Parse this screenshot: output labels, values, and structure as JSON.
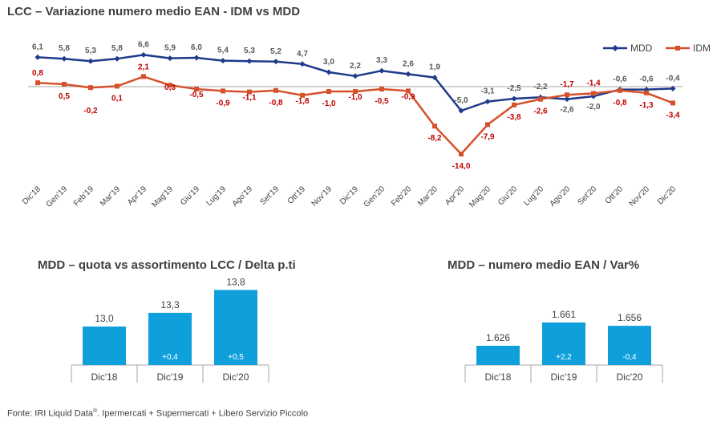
{
  "titles": {
    "line": "LCC – Variazione numero medio EAN - IDM vs MDD",
    "quota": "MDD – quota vs assortimento LCC / Delta p.ti",
    "ean": "MDD – numero medio EAN / Var%"
  },
  "footer": {
    "prefix": "Fonte: IRI Liquid Data",
    "sup": "®",
    "suffix": ". Ipermercati + Supermercati + Libero Servizio Piccolo"
  },
  "colors": {
    "mdd": "#1f3a8a",
    "idm": "#d5512c",
    "bar": "#0fa0dc",
    "axis": "#a6a6a6"
  },
  "chart_data": [
    {
      "type": "line",
      "title": "LCC – Variazione numero medio EAN - IDM vs MDD",
      "categories": [
        "Dic'18",
        "Gen'19",
        "Feb'19",
        "Mar'19",
        "Apr'19",
        "Mag'19",
        "Giu'19",
        "Lug'19",
        "Ago'19",
        "Set'19",
        "Ott'19",
        "Nov'19",
        "Dic'19",
        "Gen'20",
        "Feb'20",
        "Mar'20",
        "Apr'20",
        "Mag'20",
        "Giu'20",
        "Lug'20",
        "Ago'20",
        "Set'20",
        "Ott'20",
        "Nov'20",
        "Dic'20"
      ],
      "series": [
        {
          "name": "MDD",
          "labels": [
            "6,1",
            "5,8",
            "5,3",
            "5,8",
            "6,6",
            "5,9",
            "6,0",
            "5,4",
            "5,3",
            "5,2",
            "4,7",
            "3,0",
            "2,2",
            "3,3",
            "2,6",
            "1,9",
            "-5,0",
            "-3,1",
            "-2,5",
            "-2,2",
            "-2,6",
            "-2,0",
            "-0,6",
            "-0,6",
            "-0,4"
          ],
          "values": [
            6.1,
            5.8,
            5.3,
            5.8,
            6.6,
            5.9,
            6.0,
            5.4,
            5.3,
            5.2,
            4.7,
            3.0,
            2.2,
            3.3,
            2.6,
            1.9,
            -5.0,
            -3.1,
            -2.5,
            -2.2,
            -2.6,
            -2.0,
            -0.6,
            -0.6,
            -0.4
          ]
        },
        {
          "name": "IDM",
          "labels": [
            "0,8",
            "0,5",
            "-0,2",
            "0,1",
            "2,1",
            "0,3",
            "-0,5",
            "-0,9",
            "-1,1",
            "-0,8",
            "-1,8",
            "-1,0",
            "-1,0",
            "-0,5",
            "-0,9",
            "-8,2",
            "-14,0",
            "-7,9",
            "-3,8",
            "-2,6",
            "-1,7",
            "-1,4",
            "-0,8",
            "-1,3",
            "-3,4"
          ],
          "values": [
            0.8,
            0.5,
            -0.2,
            0.1,
            2.1,
            0.3,
            -0.5,
            -0.9,
            -1.1,
            -0.8,
            -1.8,
            -1.0,
            -1.0,
            -0.5,
            -0.9,
            -8.2,
            -14.0,
            -7.9,
            -3.8,
            -2.6,
            -1.7,
            -1.4,
            -0.8,
            -1.3,
            -3.4
          ]
        }
      ],
      "legend": "top-right"
    },
    {
      "type": "bar",
      "title": "MDD – quota vs assortimento LCC / Delta p.ti",
      "categories": [
        "Dic'18",
        "Dic'19",
        "Dic'20"
      ],
      "values": [
        13.0,
        13.3,
        13.8
      ],
      "labels": [
        "13,0",
        "13,3",
        "13,8"
      ],
      "deltas": [
        "",
        "+0,4",
        "+0,5"
      ]
    },
    {
      "type": "bar",
      "title": "MDD – numero medio EAN / Var%",
      "categories": [
        "Dic'18",
        "Dic'19",
        "Dic'20"
      ],
      "values": [
        1626,
        1661,
        1656
      ],
      "labels": [
        "1.626",
        "1.661",
        "1.656"
      ],
      "deltas": [
        "",
        "+2,2",
        "-0,4"
      ]
    }
  ]
}
